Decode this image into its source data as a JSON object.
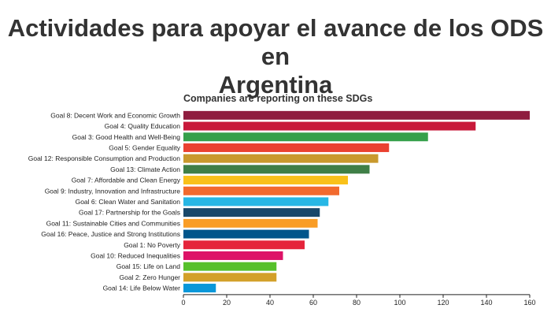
{
  "page_title_line1": "Actividades para apoyar el avance de los ODS en",
  "page_title_line2": "Argentina",
  "chart_data": {
    "type": "bar",
    "orientation": "horizontal",
    "title": "Companies are reporting on these SDGs",
    "categories": [
      "Goal 8: Decent Work and Economic Growth",
      "Goal 4: Quality Education",
      "Goal 3: Good Health and Well-Being",
      "Goal 5: Gender Equality",
      "Goal 12: Responsible Consumption and Production",
      "Goal 13: Climate Action",
      "Goal 7: Affordable and Clean Energy",
      "Goal 9: Industry, Innovation and Infrastructure",
      "Goal 6: Clean Water and Sanitation",
      "Goal 17: Partnership for the Goals",
      "Goal 11: Sustainable Cities and Communities",
      "Goal 16: Peace, Justice and Strong Institutions",
      "Goal 1: No Poverty",
      "Goal 10: Reduced Inequalities",
      "Goal 15: Life on Land",
      "Goal 2: Zero Hunger",
      "Goal 14: Life Below Water"
    ],
    "values": [
      160,
      135,
      113,
      95,
      90,
      86,
      76,
      72,
      67,
      63,
      62,
      58,
      56,
      46,
      43,
      43,
      15
    ],
    "colors": [
      "#8f1d3f",
      "#c8193a",
      "#36a04a",
      "#ea4130",
      "#c9992d",
      "#3f7f47",
      "#f9c11a",
      "#f26a2e",
      "#27b7e5",
      "#19486a",
      "#f99d26",
      "#01558b",
      "#e5243b",
      "#dd1367",
      "#56c02b",
      "#d3a029",
      "#0a97d9"
    ],
    "xlim": [
      0,
      160
    ],
    "xticks": [
      0,
      20,
      40,
      60,
      80,
      100,
      120,
      140,
      160
    ],
    "grid": false
  }
}
